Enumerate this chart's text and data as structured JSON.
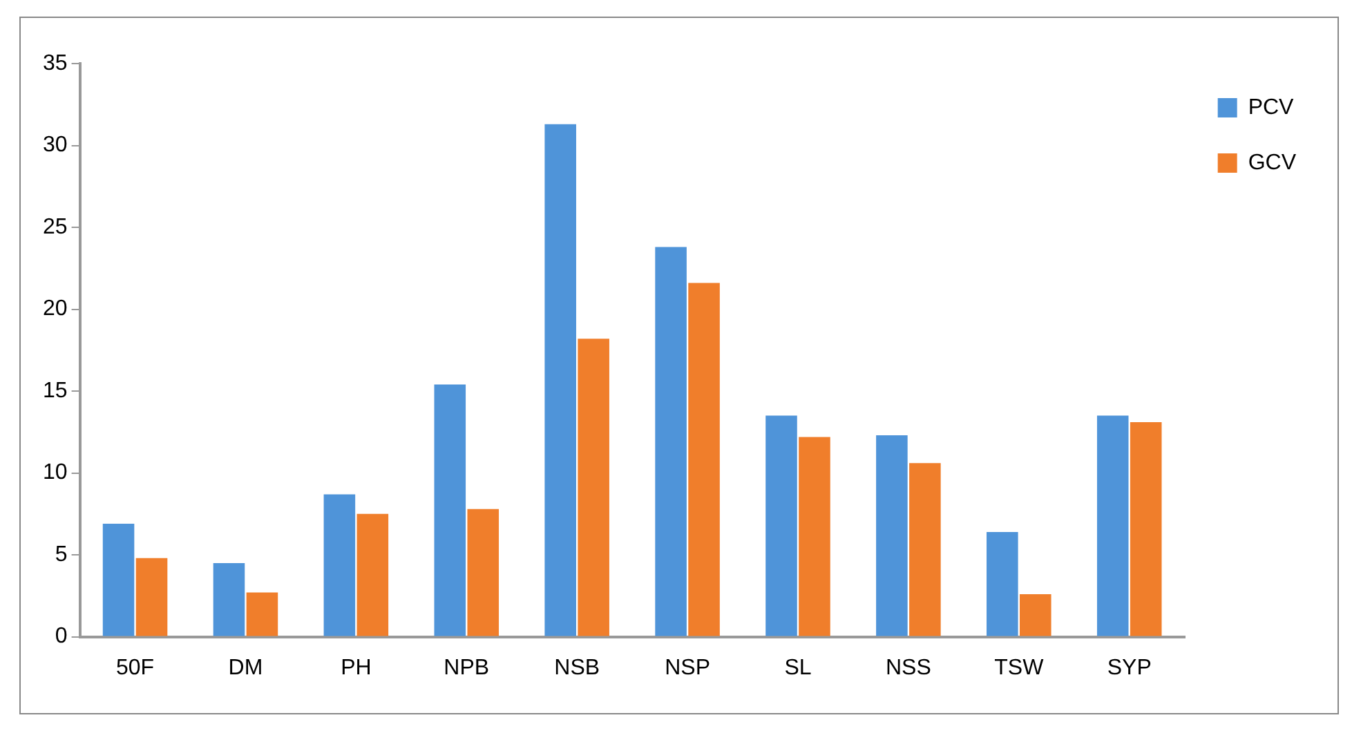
{
  "chart_data": {
    "type": "bar",
    "categories": [
      "50F",
      "DM",
      "PH",
      "NPB",
      "NSB",
      "NSP",
      "SL",
      "NSS",
      "TSW",
      "SYP"
    ],
    "series": [
      {
        "name": "PCV",
        "color": "#4f94d9",
        "values": [
          6.9,
          4.5,
          8.7,
          15.4,
          31.3,
          23.8,
          13.5,
          12.3,
          6.4,
          13.5
        ]
      },
      {
        "name": "GCV",
        "color": "#f07e2b",
        "values": [
          4.8,
          2.7,
          7.5,
          7.8,
          18.2,
          21.6,
          12.2,
          10.6,
          2.6,
          13.1
        ]
      }
    ],
    "ylim": [
      0,
      35
    ],
    "yticks": [
      0,
      5,
      10,
      15,
      20,
      25,
      30,
      35
    ],
    "grid": false,
    "legend": "top right"
  }
}
